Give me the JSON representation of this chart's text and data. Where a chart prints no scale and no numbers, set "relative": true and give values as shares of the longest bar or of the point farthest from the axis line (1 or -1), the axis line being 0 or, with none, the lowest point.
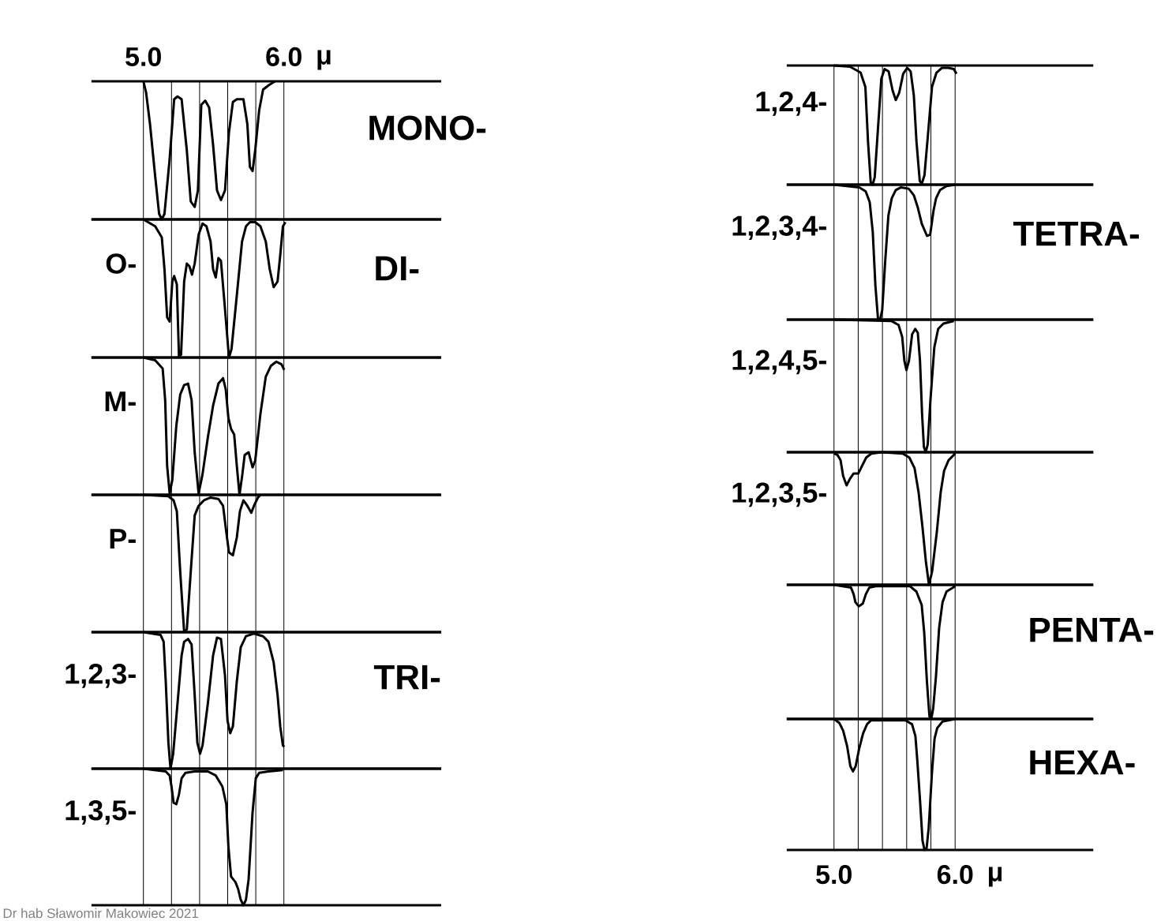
{
  "chart_data": [
    {
      "type": "line",
      "annotations": [
        "MONO-"
      ],
      "xlabel": "μ",
      "color": "#000000",
      "relative": true,
      "grid": "x",
      "xlim": [
        4.63,
        7.12
      ],
      "xticks": [
        {
          "value": 5.0,
          "label": "5.0"
        },
        {
          "value": 5.2,
          "label": null
        },
        {
          "value": 5.4,
          "label": null
        },
        {
          "value": 5.6,
          "label": null
        },
        {
          "value": 5.8,
          "label": null
        },
        {
          "value": 6.0,
          "label": "6.0"
        }
      ],
      "x": [
        5.0,
        5.019,
        5.047,
        5.084,
        5.112,
        5.131,
        5.15,
        5.187,
        5.219,
        5.243,
        5.272,
        5.309,
        5.337,
        5.365,
        5.388,
        5.412,
        5.44,
        5.468,
        5.496,
        5.524,
        5.552,
        5.581,
        5.609,
        5.637,
        5.665,
        5.712,
        5.74,
        5.758,
        5.777,
        5.796,
        5.824,
        5.852,
        5.89,
        5.936
      ],
      "values": [
        0,
        -0.08,
        -0.31,
        -0.69,
        -0.96,
        -1.0,
        -0.96,
        -0.56,
        -0.13,
        -0.11,
        -0.13,
        -0.5,
        -0.87,
        -0.91,
        -0.79,
        -0.17,
        -0.14,
        -0.19,
        -0.46,
        -0.79,
        -0.86,
        -0.79,
        -0.37,
        -0.15,
        -0.13,
        -0.13,
        -0.31,
        -0.62,
        -0.65,
        -0.5,
        -0.21,
        -0.06,
        -0.03,
        0
      ]
    },
    {
      "type": "line",
      "ylabel": "O-",
      "annotations": [
        "DI-"
      ],
      "color": "#000000",
      "relative": true,
      "grid": "x",
      "tick_labels": false,
      "xlim": [
        4.63,
        7.12
      ],
      "xticks": [
        5.0,
        5.2,
        5.4,
        5.6,
        5.8,
        6.0
      ],
      "x": [
        5.0,
        5.084,
        5.131,
        5.15,
        5.169,
        5.187,
        5.206,
        5.219,
        5.238,
        5.253,
        5.268,
        5.29,
        5.309,
        5.328,
        5.346,
        5.365,
        5.393,
        5.421,
        5.449,
        5.478,
        5.496,
        5.515,
        5.534,
        5.552,
        5.581,
        5.609,
        5.627,
        5.665,
        5.702,
        5.73,
        5.758,
        5.796,
        5.833,
        5.871,
        5.899,
        5.927,
        5.955,
        5.974,
        5.993,
        6.011
      ],
      "values": [
        0,
        -0.05,
        -0.13,
        -0.36,
        -0.71,
        -0.74,
        -0.45,
        -0.41,
        -0.47,
        -0.99,
        -0.98,
        -0.45,
        -0.32,
        -0.34,
        -0.4,
        -0.32,
        -0.11,
        -0.03,
        -0.05,
        -0.16,
        -0.36,
        -0.42,
        -0.28,
        -0.3,
        -0.65,
        -1.0,
        -0.94,
        -0.55,
        -0.16,
        -0.05,
        -0.02,
        -0.02,
        -0.05,
        -0.16,
        -0.36,
        -0.49,
        -0.45,
        -0.26,
        -0.05,
        -0.02
      ]
    },
    {
      "type": "line",
      "ylabel": "M-",
      "color": "#000000",
      "relative": true,
      "grid": "x",
      "tick_labels": false,
      "xlim": [
        4.63,
        7.12
      ],
      "xticks": [
        5.0,
        5.2,
        5.4,
        5.6,
        5.8,
        6.0
      ],
      "x": [
        5.0,
        5.084,
        5.137,
        5.155,
        5.169,
        5.187,
        5.206,
        5.234,
        5.262,
        5.29,
        5.318,
        5.343,
        5.365,
        5.393,
        5.421,
        5.459,
        5.496,
        5.534,
        5.567,
        5.586,
        5.605,
        5.624,
        5.646,
        5.665,
        5.684,
        5.702,
        5.721,
        5.749,
        5.777,
        5.796,
        5.833,
        5.871,
        5.908,
        5.946,
        5.983,
        6.002
      ],
      "values": [
        0,
        -0.02,
        -0.08,
        -0.31,
        -0.79,
        -0.99,
        -0.89,
        -0.5,
        -0.27,
        -0.2,
        -0.19,
        -0.31,
        -0.69,
        -0.99,
        -0.85,
        -0.58,
        -0.35,
        -0.19,
        -0.15,
        -0.23,
        -0.44,
        -0.52,
        -0.56,
        -0.79,
        -1.0,
        -0.87,
        -0.71,
        -0.69,
        -0.8,
        -0.75,
        -0.41,
        -0.14,
        -0.06,
        -0.03,
        -0.05,
        -0.09
      ]
    },
    {
      "type": "line",
      "ylabel": "P-",
      "color": "#000000",
      "relative": true,
      "grid": "x",
      "tick_labels": false,
      "xlim": [
        4.63,
        7.12
      ],
      "xticks": [
        5.0,
        5.2,
        5.4,
        5.6,
        5.8,
        6.0
      ],
      "x": [
        5.0,
        5.178,
        5.215,
        5.238,
        5.262,
        5.29,
        5.309,
        5.337,
        5.365,
        5.393,
        5.431,
        5.478,
        5.534,
        5.567,
        5.59,
        5.609,
        5.637,
        5.665,
        5.687,
        5.712,
        5.74,
        5.768,
        5.787,
        5.815,
        5.833
      ],
      "values": [
        0,
        -0.01,
        -0.04,
        -0.12,
        -0.56,
        -1.0,
        -0.98,
        -0.56,
        -0.15,
        -0.08,
        -0.04,
        -0.02,
        -0.03,
        -0.08,
        -0.27,
        -0.42,
        -0.44,
        -0.31,
        -0.12,
        -0.04,
        -0.08,
        -0.13,
        -0.08,
        -0.02,
        0
      ]
    },
    {
      "type": "line",
      "ylabel": "1,2,3-",
      "annotations": [
        "TRI-"
      ],
      "color": "#000000",
      "relative": true,
      "grid": "x",
      "tick_labels": false,
      "xlim": [
        4.63,
        7.12
      ],
      "xticks": [
        5.0,
        5.2,
        5.4,
        5.6,
        5.8,
        6.0
      ],
      "x": [
        5.0,
        5.122,
        5.144,
        5.159,
        5.178,
        5.193,
        5.212,
        5.243,
        5.272,
        5.29,
        5.318,
        5.343,
        5.365,
        5.384,
        5.403,
        5.421,
        5.459,
        5.496,
        5.524,
        5.552,
        5.581,
        5.599,
        5.618,
        5.637,
        5.665,
        5.693,
        5.73,
        5.787,
        5.852,
        5.89,
        5.927,
        5.955,
        5.974,
        5.993,
        6.002
      ],
      "values": [
        0,
        -0.02,
        -0.07,
        -0.36,
        -0.81,
        -1.0,
        -0.89,
        -0.52,
        -0.17,
        -0.07,
        -0.05,
        -0.09,
        -0.46,
        -0.81,
        -0.89,
        -0.83,
        -0.52,
        -0.17,
        -0.04,
        -0.05,
        -0.32,
        -0.65,
        -0.74,
        -0.69,
        -0.36,
        -0.11,
        -0.03,
        -0.01,
        -0.03,
        -0.07,
        -0.22,
        -0.46,
        -0.69,
        -0.83,
        -0.84
      ]
    },
    {
      "type": "line",
      "ylabel": "1,3,5-",
      "annotations": [
        "Dr hab Sławomir Makowiec 2021"
      ],
      "color": "#000000",
      "relative": true,
      "grid": "x",
      "tick_labels": false,
      "xlim": [
        4.63,
        7.12
      ],
      "xticks": [
        5.0,
        5.2,
        5.4,
        5.6,
        5.8,
        6.0
      ],
      "x": [
        5.0,
        5.159,
        5.187,
        5.2,
        5.215,
        5.234,
        5.253,
        5.272,
        5.3,
        5.365,
        5.459,
        5.515,
        5.562,
        5.59,
        5.605,
        5.624,
        5.655,
        5.674,
        5.693,
        5.712,
        5.73,
        5.749,
        5.777,
        5.8,
        5.824,
        5.89,
        5.993
      ],
      "values": [
        0,
        -0.02,
        -0.05,
        -0.13,
        -0.25,
        -0.26,
        -0.19,
        -0.07,
        -0.03,
        -0.02,
        -0.02,
        -0.05,
        -0.13,
        -0.26,
        -0.57,
        -0.79,
        -0.83,
        -0.88,
        -0.96,
        -1.0,
        -0.96,
        -0.81,
        -0.32,
        -0.07,
        -0.03,
        -0.02,
        -0.01
      ]
    },
    {
      "type": "line",
      "ylabel": "1,2,4-",
      "color": "#000000",
      "relative": true,
      "grid": "x",
      "tick_labels": false,
      "xlim": [
        4.61,
        7.14
      ],
      "xticks": [
        5.0,
        5.2,
        5.4,
        5.6,
        5.8,
        6.0
      ],
      "x": [
        5.0,
        5.132,
        5.22,
        5.259,
        5.281,
        5.303,
        5.319,
        5.336,
        5.363,
        5.391,
        5.418,
        5.451,
        5.484,
        5.51,
        5.538,
        5.571,
        5.604,
        5.633,
        5.659,
        5.681,
        5.708,
        5.725,
        5.747,
        5.78,
        5.809,
        5.846,
        5.89,
        5.945,
        5.989,
        6.011
      ],
      "values": [
        0,
        -0.01,
        -0.06,
        -0.18,
        -0.64,
        -0.98,
        -1.0,
        -0.94,
        -0.53,
        -0.11,
        -0.03,
        -0.05,
        -0.21,
        -0.29,
        -0.23,
        -0.07,
        -0.02,
        -0.05,
        -0.25,
        -0.64,
        -0.97,
        -0.99,
        -0.92,
        -0.53,
        -0.18,
        -0.06,
        -0.02,
        -0.02,
        -0.03,
        -0.07
      ]
    },
    {
      "type": "line",
      "ylabel": "1,2,3,4-",
      "annotations": [
        "TETRA-"
      ],
      "color": "#000000",
      "relative": true,
      "grid": "x",
      "tick_labels": false,
      "xlim": [
        4.61,
        7.14
      ],
      "xticks": [
        5.0,
        5.2,
        5.4,
        5.6,
        5.8,
        6.0
      ],
      "x": [
        5.0,
        5.209,
        5.262,
        5.295,
        5.32,
        5.342,
        5.363,
        5.381,
        5.398,
        5.424,
        5.449,
        5.477,
        5.51,
        5.553,
        5.617,
        5.66,
        5.692,
        5.725,
        5.768,
        5.794,
        5.822,
        5.843,
        5.875,
        5.929,
        6.0
      ],
      "values": [
        0,
        -0.02,
        -0.05,
        -0.13,
        -0.35,
        -0.75,
        -0.99,
        -1.0,
        -0.93,
        -0.55,
        -0.23,
        -0.1,
        -0.04,
        -0.02,
        -0.03,
        -0.08,
        -0.17,
        -0.29,
        -0.38,
        -0.37,
        -0.19,
        -0.1,
        -0.04,
        -0.01,
        0
      ]
    },
    {
      "type": "line",
      "ylabel": "1,2,4,5-",
      "color": "#000000",
      "relative": true,
      "grid": "x",
      "tick_labels": false,
      "xlim": [
        4.61,
        7.14
      ],
      "xticks": [
        5.0,
        5.2,
        5.4,
        5.6,
        5.8,
        6.0
      ],
      "x": [
        5.0,
        5.473,
        5.533,
        5.563,
        5.581,
        5.598,
        5.619,
        5.645,
        5.671,
        5.692,
        5.71,
        5.727,
        5.742,
        5.757,
        5.774,
        5.796,
        5.828,
        5.86,
        5.903,
        5.989
      ],
      "values": [
        0,
        -0.01,
        -0.04,
        -0.13,
        -0.31,
        -0.38,
        -0.31,
        -0.11,
        -0.07,
        -0.1,
        -0.31,
        -0.71,
        -0.96,
        -1.0,
        -0.94,
        -0.61,
        -0.21,
        -0.07,
        -0.03,
        -0.01
      ]
    },
    {
      "type": "line",
      "ylabel": "1,2,3,5-",
      "color": "#000000",
      "relative": true,
      "grid": "x",
      "tick_labels": false,
      "xlim": [
        4.61,
        7.14
      ],
      "xticks": [
        5.0,
        5.2,
        5.4,
        5.6,
        5.8,
        6.0
      ],
      "x": [
        5.0,
        5.028,
        5.054,
        5.076,
        5.104,
        5.132,
        5.162,
        5.201,
        5.233,
        5.266,
        5.309,
        5.395,
        5.568,
        5.622,
        5.665,
        5.698,
        5.73,
        5.758,
        5.784,
        5.81,
        5.849,
        5.881,
        5.909,
        5.946,
        6.0
      ],
      "values": [
        -0.01,
        -0.02,
        -0.06,
        -0.18,
        -0.25,
        -0.2,
        -0.16,
        -0.16,
        -0.1,
        -0.04,
        -0.01,
        0,
        -0.01,
        -0.04,
        -0.12,
        -0.3,
        -0.56,
        -0.82,
        -1.0,
        -0.9,
        -0.6,
        -0.3,
        -0.14,
        -0.06,
        -0.01
      ]
    },
    {
      "type": "line",
      "annotations": [
        "PENTA-"
      ],
      "color": "#000000",
      "relative": true,
      "grid": "x",
      "tick_labels": false,
      "xlim": [
        4.61,
        7.14
      ],
      "xticks": [
        5.0,
        5.2,
        5.4,
        5.6,
        5.8,
        6.0
      ],
      "x": [
        5.0,
        5.14,
        5.162,
        5.177,
        5.205,
        5.238,
        5.263,
        5.292,
        5.346,
        5.626,
        5.68,
        5.724,
        5.745,
        5.767,
        5.788,
        5.803,
        5.819,
        5.842,
        5.868,
        5.896,
        5.929,
        5.983,
        6.0
      ],
      "values": [
        0,
        -0.02,
        -0.07,
        -0.13,
        -0.16,
        -0.14,
        -0.07,
        -0.02,
        -0.01,
        -0.01,
        -0.05,
        -0.15,
        -0.36,
        -0.72,
        -0.98,
        -1.0,
        -0.92,
        -0.68,
        -0.32,
        -0.13,
        -0.05,
        -0.02,
        -0.01
      ]
    },
    {
      "type": "line",
      "annotations": [
        "HEXA-"
      ],
      "xlabel": "μ",
      "color": "#000000",
      "relative": true,
      "grid": "x",
      "xlim": [
        4.61,
        7.14
      ],
      "xticks": [
        {
          "value": 5.0,
          "label": "5.0"
        },
        {
          "value": 5.2,
          "label": null
        },
        {
          "value": 5.4,
          "label": null
        },
        {
          "value": 5.6,
          "label": null
        },
        {
          "value": 5.8,
          "label": null
        },
        {
          "value": 6.0,
          "label": "6.0"
        }
      ],
      "x": [
        5.0,
        5.044,
        5.076,
        5.109,
        5.135,
        5.157,
        5.179,
        5.207,
        5.24,
        5.273,
        5.306,
        5.59,
        5.644,
        5.672,
        5.688,
        5.71,
        5.731,
        5.747,
        5.764,
        5.782,
        5.808,
        5.83,
        5.852,
        5.895,
        6.0
      ],
      "values": [
        0,
        -0.03,
        -0.09,
        -0.21,
        -0.36,
        -0.4,
        -0.36,
        -0.23,
        -0.11,
        -0.04,
        -0.01,
        -0.01,
        -0.04,
        -0.13,
        -0.32,
        -0.62,
        -0.93,
        -1.0,
        -0.99,
        -0.83,
        -0.42,
        -0.15,
        -0.07,
        -0.02,
        0
      ]
    }
  ]
}
